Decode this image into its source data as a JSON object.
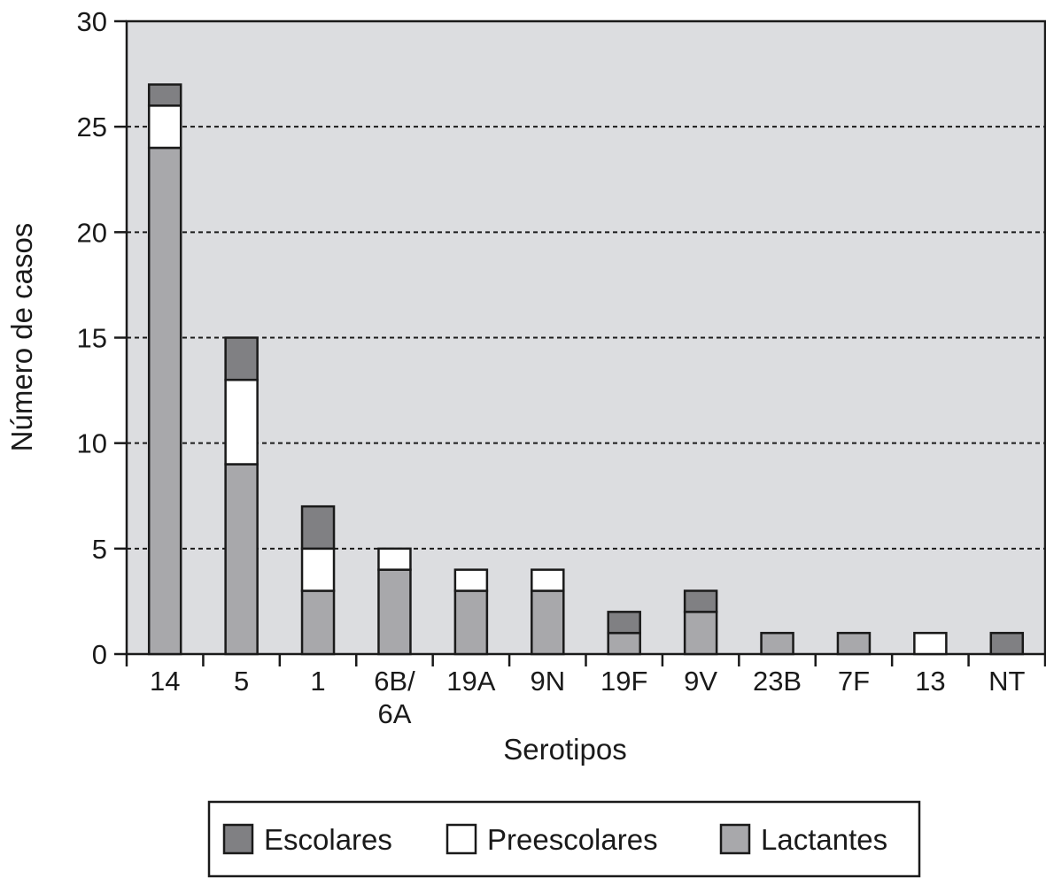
{
  "chart_data": {
    "type": "bar",
    "stacked": true,
    "xlabel": "Serotipos",
    "ylabel": "Número de casos",
    "ylim": [
      0,
      30
    ],
    "yticks": [
      0,
      5,
      10,
      15,
      20,
      25,
      30
    ],
    "grid": "horizontal dashed",
    "legend_position": "bottom",
    "categories": [
      "14",
      "5",
      "1",
      "6B/\n6A",
      "19A",
      "9N",
      "19F",
      "9V",
      "23B",
      "7F",
      "13",
      "NT"
    ],
    "series": [
      {
        "name": "Lactantes",
        "color": "#a8a8ab",
        "values": [
          24,
          9,
          3,
          4,
          3,
          3,
          1,
          2,
          1,
          1,
          0,
          0
        ]
      },
      {
        "name": "Preescolares",
        "color": "#ffffff",
        "values": [
          2,
          4,
          2,
          1,
          1,
          1,
          0,
          0,
          0,
          0,
          1,
          0
        ]
      },
      {
        "name": "Escolares",
        "color": "#808083",
        "values": [
          1,
          2,
          2,
          0,
          0,
          0,
          1,
          1,
          0,
          0,
          0,
          1
        ]
      }
    ],
    "legend_order": [
      "Escolares",
      "Preescolares",
      "Lactantes"
    ],
    "plot_background": "#dcdde0"
  }
}
